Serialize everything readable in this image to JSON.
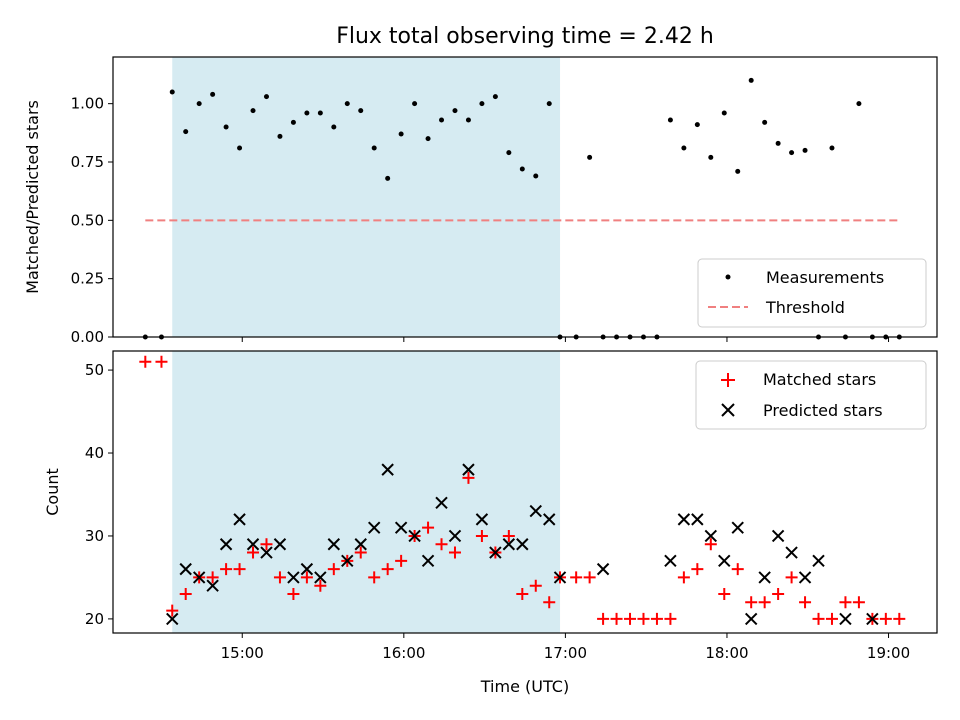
{
  "chart_data": [
    {
      "type": "scatter",
      "title": "Flux total observing time = 2.42 h",
      "xlabel": "",
      "ylabel": "Matched/Predicted stars",
      "xlim": [
        "14:12",
        "19:18"
      ],
      "ylim": [
        0,
        1.2
      ],
      "yticks": [
        0.0,
        0.25,
        0.5,
        0.75,
        1.0
      ],
      "ytick_labels": [
        "0.00",
        "0.25",
        "0.50",
        "0.75",
        "1.00"
      ],
      "shaded_interval": [
        "14:34",
        "16:58"
      ],
      "shade_color": "#add8e6",
      "legend_position": "lower-right",
      "series": [
        {
          "name": "Measurements",
          "marker": "dot",
          "color": "#000000",
          "x": [
            "14:24",
            "14:30",
            "14:34",
            "14:39",
            "14:44",
            "14:49",
            "14:54",
            "14:59",
            "15:04",
            "15:09",
            "15:14",
            "15:19",
            "15:24",
            "15:29",
            "15:34",
            "15:39",
            "15:44",
            "15:49",
            "15:54",
            "15:59",
            "16:04",
            "16:09",
            "16:14",
            "16:19",
            "16:24",
            "16:29",
            "16:34",
            "16:39",
            "16:44",
            "16:49",
            "16:54",
            "16:58",
            "17:04",
            "17:09",
            "17:14",
            "17:19",
            "17:24",
            "17:29",
            "17:34",
            "17:39",
            "17:44",
            "17:49",
            "17:54",
            "17:59",
            "18:04",
            "18:09",
            "18:14",
            "18:19",
            "18:24",
            "18:29",
            "18:34",
            "18:39",
            "18:44",
            "18:49",
            "18:54",
            "18:59",
            "19:04"
          ],
          "y": [
            0,
            0,
            1.05,
            0.88,
            1.0,
            1.04,
            0.9,
            0.81,
            0.97,
            1.03,
            0.86,
            0.92,
            0.96,
            0.96,
            0.9,
            1.0,
            0.97,
            0.81,
            0.68,
            0.87,
            1.0,
            0.85,
            0.93,
            0.97,
            0.93,
            1.0,
            1.03,
            0.79,
            0.72,
            0.69,
            1.0,
            0,
            0,
            0.77,
            0,
            0,
            0,
            0,
            0,
            0.93,
            0.81,
            0.91,
            0.77,
            0.96,
            0.71,
            1.1,
            0.92,
            0.83,
            0.79,
            0.8,
            0,
            0.81,
            0,
            1.0,
            0,
            0,
            0
          ]
        },
        {
          "name": "Threshold",
          "marker": "dashed-line",
          "color": "#f08080",
          "x": [
            "14:24",
            "19:04"
          ],
          "y": [
            0.5,
            0.5
          ]
        }
      ]
    },
    {
      "type": "scatter",
      "title": "",
      "xlabel": "Time (UTC)",
      "ylabel": "Count",
      "xlim": [
        "14:12",
        "19:18"
      ],
      "ylim": [
        18.3,
        52.3
      ],
      "yticks": [
        20,
        30,
        40,
        50
      ],
      "xticks": [
        "15:00",
        "16:00",
        "17:00",
        "18:00",
        "19:00"
      ],
      "shaded_interval": [
        "14:34",
        "16:58"
      ],
      "shade_color": "#add8e6",
      "legend_position": "upper-right",
      "series": [
        {
          "name": "Matched stars",
          "marker": "plus",
          "color": "#ff0000",
          "x": [
            "14:24",
            "14:30",
            "14:34",
            "14:39",
            "14:44",
            "14:49",
            "14:54",
            "14:59",
            "15:04",
            "15:09",
            "15:14",
            "15:19",
            "15:24",
            "15:29",
            "15:34",
            "15:39",
            "15:44",
            "15:49",
            "15:54",
            "15:59",
            "16:04",
            "16:09",
            "16:14",
            "16:19",
            "16:24",
            "16:29",
            "16:34",
            "16:39",
            "16:44",
            "16:49",
            "16:54",
            "16:58",
            "17:04",
            "17:09",
            "17:14",
            "17:19",
            "17:24",
            "17:29",
            "17:34",
            "17:39",
            "17:44",
            "17:49",
            "17:54",
            "17:59",
            "18:04",
            "18:09",
            "18:14",
            "18:19",
            "18:24",
            "18:29",
            "18:34",
            "18:39",
            "18:44",
            "18:49",
            "18:54",
            "18:59",
            "19:04"
          ],
          "y": [
            51,
            51,
            21,
            23,
            25,
            25,
            26,
            26,
            28,
            29,
            25,
            23,
            25,
            24,
            26,
            27,
            28,
            25,
            26,
            27,
            30,
            31,
            29,
            28,
            37,
            30,
            28,
            30,
            23,
            24,
            22,
            25,
            25,
            25,
            20,
            20,
            20,
            20,
            20,
            20,
            25,
            26,
            29,
            23,
            26,
            22,
            22,
            23,
            25,
            22,
            20,
            20,
            22,
            22,
            20,
            20,
            20
          ]
        },
        {
          "name": "Predicted stars",
          "marker": "x",
          "color": "#000000",
          "x": [
            "14:34",
            "14:39",
            "14:44",
            "14:49",
            "14:54",
            "14:59",
            "15:04",
            "15:09",
            "15:14",
            "15:19",
            "15:24",
            "15:29",
            "15:34",
            "15:39",
            "15:44",
            "15:49",
            "15:54",
            "15:59",
            "16:04",
            "16:09",
            "16:14",
            "16:19",
            "16:24",
            "16:29",
            "16:34",
            "16:39",
            "16:44",
            "16:49",
            "16:54",
            "16:58",
            "17:14",
            "17:39",
            "17:44",
            "17:49",
            "17:54",
            "17:59",
            "18:04",
            "18:09",
            "18:14",
            "18:19",
            "18:24",
            "18:29",
            "18:34",
            "18:44",
            "18:54"
          ],
          "y": [
            20,
            26,
            25,
            24,
            29,
            32,
            29,
            28,
            29,
            25,
            26,
            25,
            29,
            27,
            29,
            31,
            38,
            31,
            30,
            27,
            34,
            30,
            38,
            32,
            28,
            29,
            29,
            33,
            32,
            25,
            26,
            27,
            32,
            32,
            30,
            27,
            31,
            20,
            25,
            30,
            28,
            25,
            27,
            20,
            20
          ]
        }
      ]
    }
  ]
}
